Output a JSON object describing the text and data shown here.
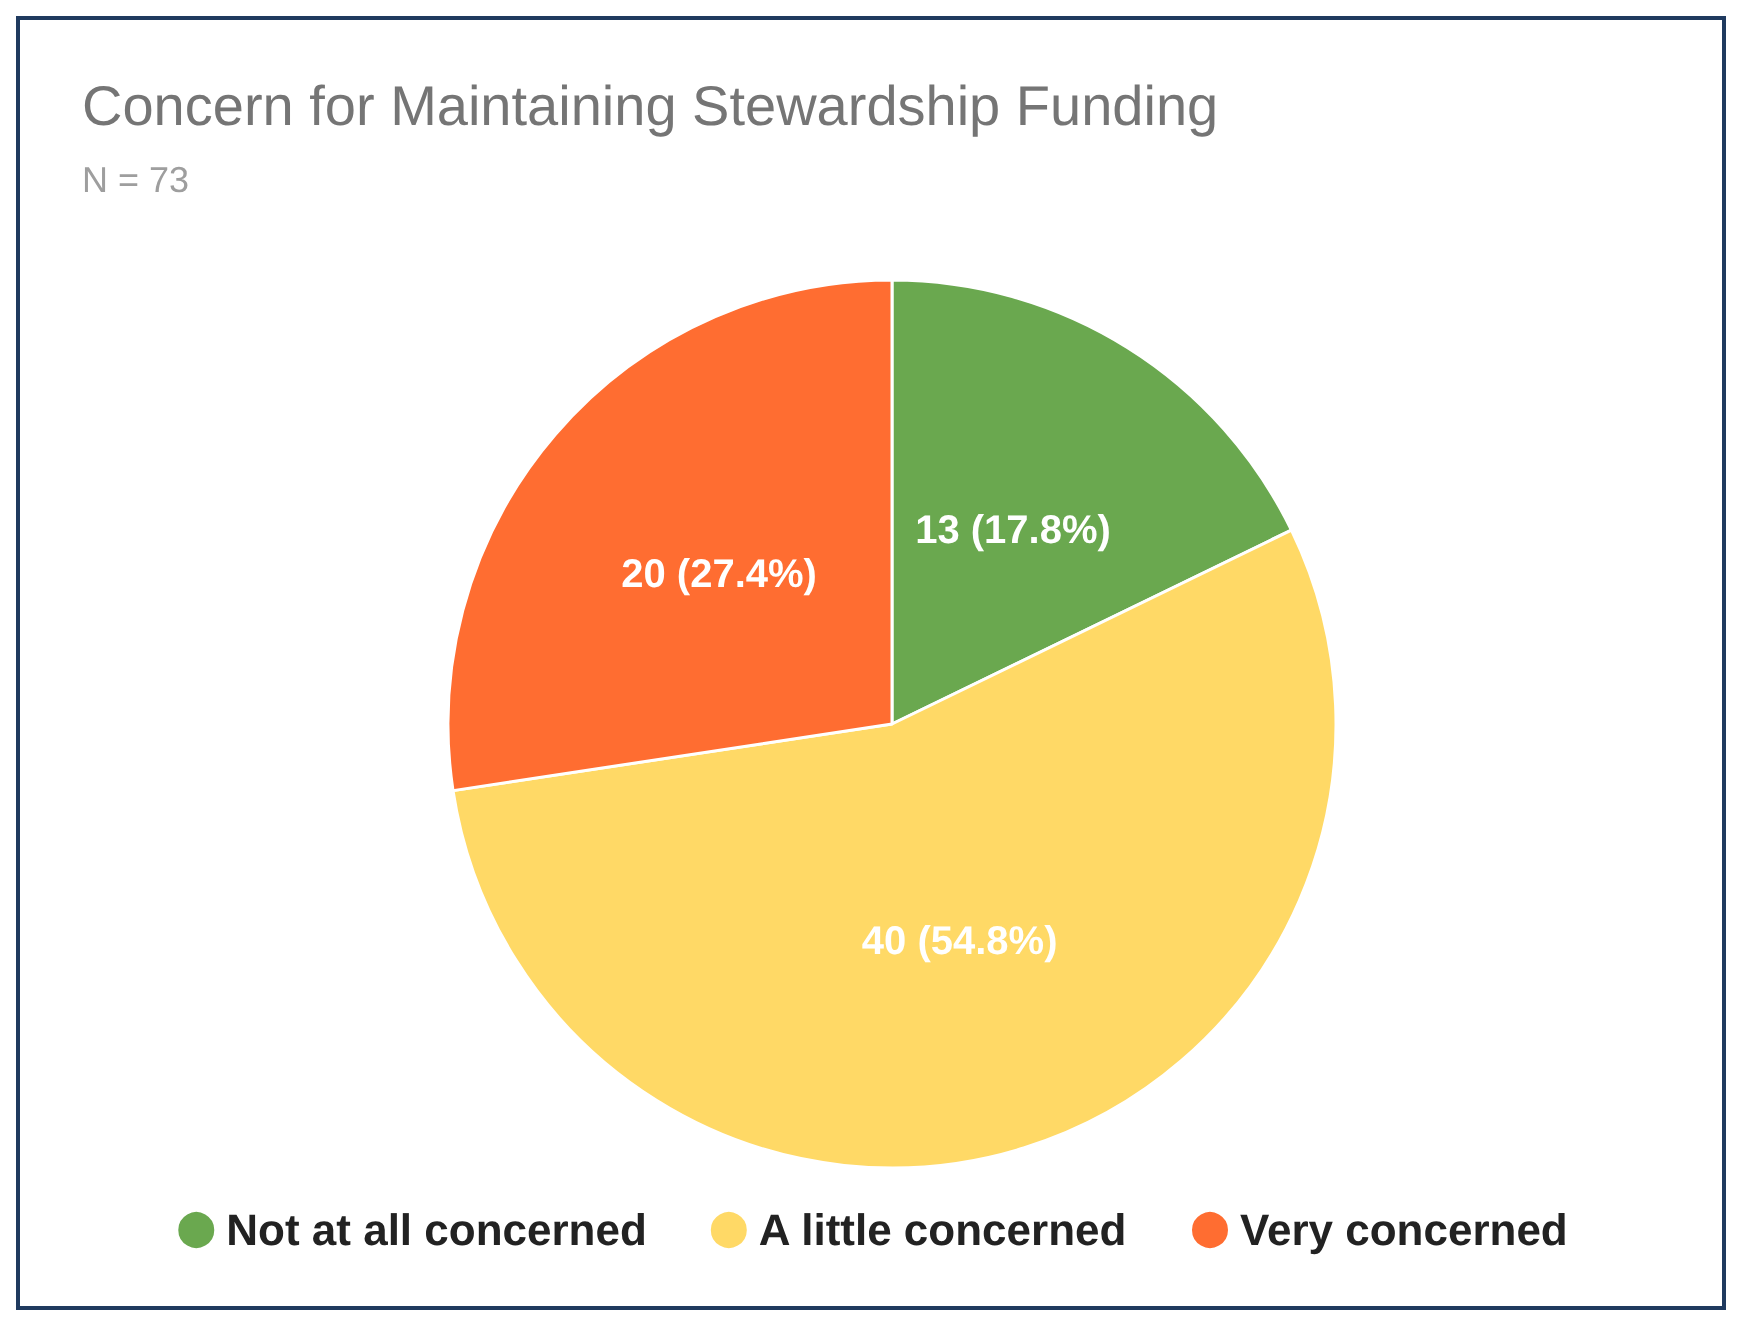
{
  "chart_data": {
    "type": "pie",
    "title": "Concern for Maintaining Stewardship Funding",
    "subtitle": "N = 73",
    "categories": [
      "Not at all concerned",
      "A little concerned",
      "Very concerned"
    ],
    "values": [
      13,
      40,
      20
    ],
    "colors": [
      "#6aa84f",
      "#ffd966",
      "#ff6d31"
    ],
    "value_labels": [
      "13 (17.8%)",
      "40 (54.8%)",
      "20 (27.4%)"
    ],
    "legend": "bottom"
  }
}
